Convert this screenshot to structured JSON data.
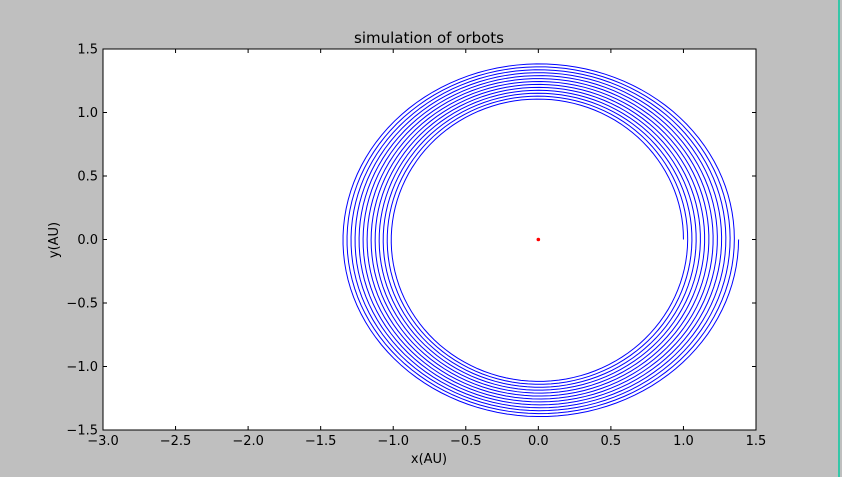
{
  "chart_data": {
    "type": "line",
    "title": "simulation of orbots",
    "xlabel": "x(AU)",
    "ylabel": "y(AU)",
    "xlim": [
      -3.0,
      1.5
    ],
    "ylim": [
      -1.5,
      1.5
    ],
    "x_ticks": [
      -3.0,
      -2.5,
      -2.0,
      -1.5,
      -1.0,
      -0.5,
      0.0,
      0.5,
      1.0,
      1.5
    ],
    "y_ticks": [
      -1.5,
      -1.0,
      -0.5,
      0.0,
      0.5,
      1.0,
      1.5
    ],
    "x_tick_labels": [
      "−3.0",
      "−2.5",
      "−2.0",
      "−1.5",
      "−1.0",
      "−0.5",
      "0.0",
      "0.5",
      "1.0",
      "1.5"
    ],
    "y_tick_labels": [
      "−1.5",
      "−1.0",
      "−0.5",
      "0.0",
      "0.5",
      "1.0",
      "1.5"
    ],
    "grid": false,
    "series": [
      {
        "kind": "orbit",
        "color": "#0000ff",
        "start": [
          1.0,
          0.0
        ],
        "orbits": 13,
        "x_center_first": 0.0,
        "x_center_last": 0.01,
        "x_radius_first": 1.0,
        "x_radius_last": 1.37,
        "y_radius_first": 1.1,
        "y_radius_last": 1.4,
        "direction": "counterclockwise"
      },
      {
        "kind": "point",
        "x": 0.0,
        "y": 0.0,
        "color": "#ff0000"
      }
    ]
  }
}
